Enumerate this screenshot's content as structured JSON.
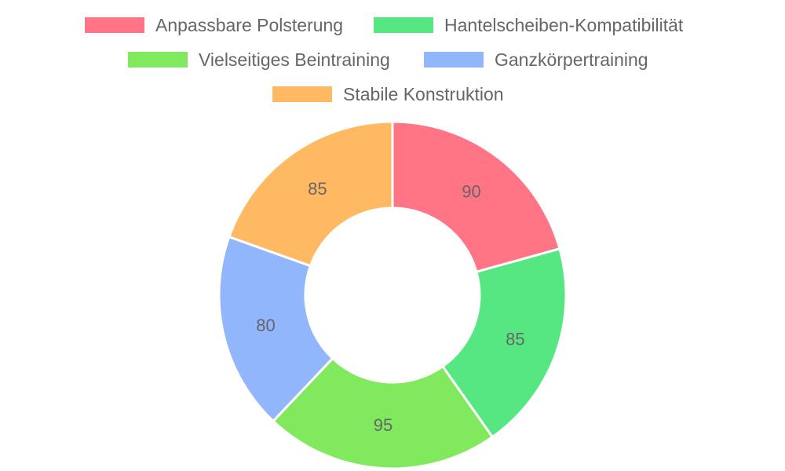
{
  "chart_data": {
    "type": "pie",
    "variant": "doughnut",
    "categories": [
      "Anpassbare Polsterung",
      "Hantelscheiben-Kompatibilität",
      "Vielseitiges Beintraining",
      "Ganzkörpertraining",
      "Stabile Konstruktion"
    ],
    "values": [
      90,
      85,
      95,
      80,
      85
    ],
    "colors": [
      "#ff7585",
      "#56e783",
      "#80e95e",
      "#92b6fc",
      "#ffb963"
    ],
    "legend_position": "top",
    "show_data_labels": true
  }
}
